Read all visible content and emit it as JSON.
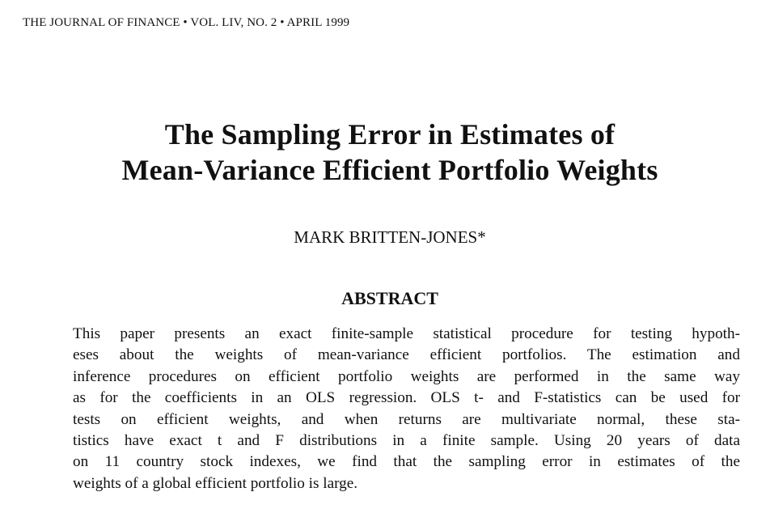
{
  "header": {
    "running_head": "THE JOURNAL OF FINANCE • VOL. LIV, NO. 2 • APRIL 1999"
  },
  "article": {
    "title_lines": [
      "The Sampling Error in Estimates of",
      "Mean-Variance Efficient Portfolio Weights"
    ],
    "author": "MARK BRITTEN-JONES*"
  },
  "abstract": {
    "heading": "ABSTRACT",
    "lines": [
      "This paper presents an exact finite-sample statistical procedure for testing hypoth-",
      "eses about the weights of mean-variance efficient portfolios. The estimation and",
      "inference procedures on efficient portfolio weights are performed in the same way",
      "as for the coefficients in an OLS regression. OLS t- and F-statistics can be used for",
      "tests on efficient weights, and when returns are multivariate normal, these sta-",
      "tistics have exact t and F distributions in a finite sample. Using 20 years of data",
      "on 11 country stock indexes, we find that the sampling error in estimates of the",
      "weights of a global efficient portfolio is large."
    ]
  }
}
